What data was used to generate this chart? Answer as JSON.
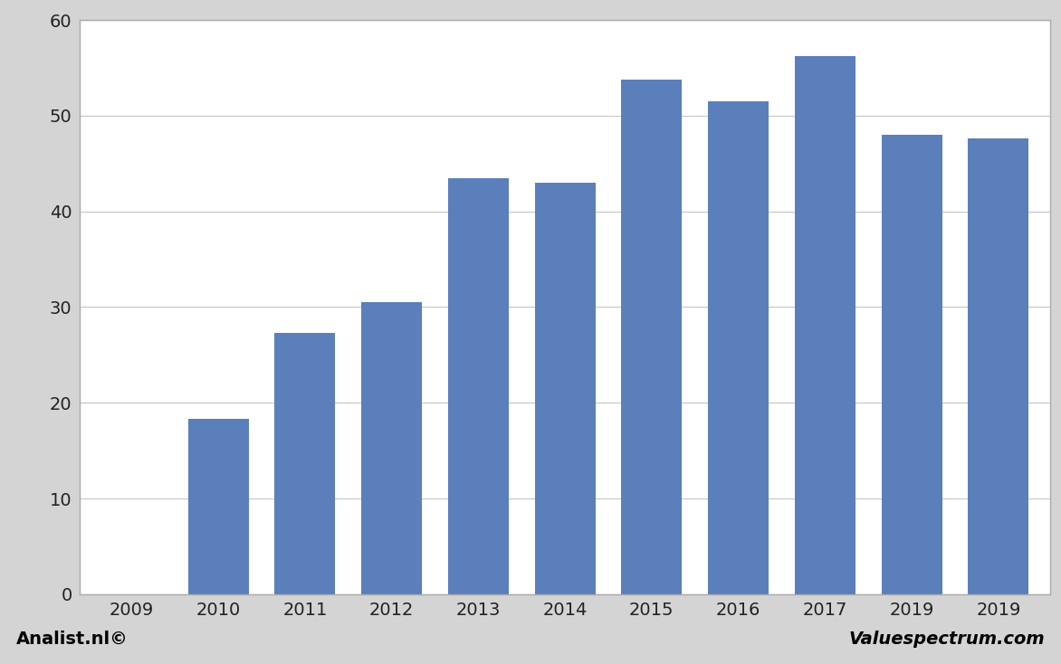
{
  "categories": [
    "2009",
    "2010",
    "2011",
    "2012",
    "2013",
    "2014",
    "2015",
    "2016",
    "2017",
    "2019",
    "2019"
  ],
  "values": [
    null,
    18.3,
    27.3,
    30.5,
    43.5,
    43.0,
    53.8,
    51.5,
    56.2,
    48.0,
    47.6
  ],
  "bar_color": "#5b7fbb",
  "ylim": [
    0,
    60
  ],
  "yticks": [
    0,
    10,
    20,
    30,
    40,
    50,
    60
  ],
  "outer_bg_color": "#d4d4d4",
  "plot_bg_color": "#ffffff",
  "footer_left": "Analist.nl©",
  "footer_right": "Valuespectrum.com",
  "footer_fontsize": 14,
  "bar_width": 0.7,
  "grid_color": "#c8c8c8",
  "spine_color": "#aaaaaa",
  "tick_label_fontsize": 14,
  "footer_bg_color": "#d4d4d4",
  "frame_color": "#aaaaaa"
}
